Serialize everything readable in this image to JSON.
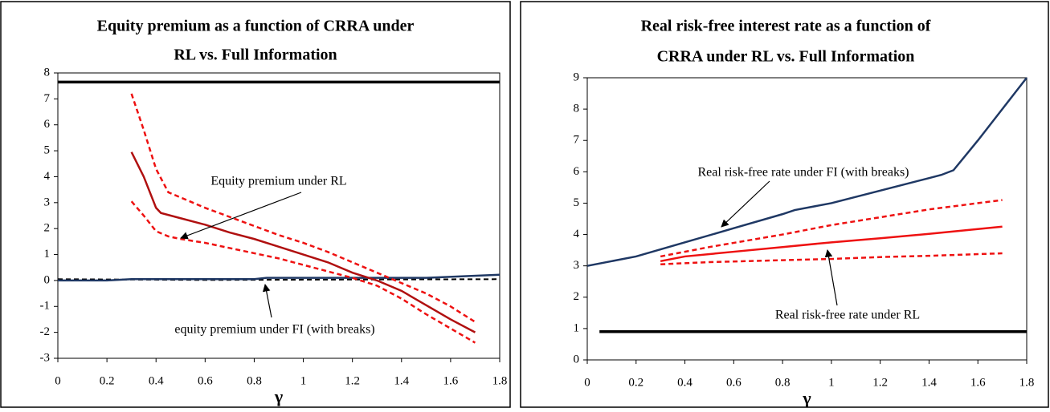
{
  "chart_data": [
    {
      "type": "line",
      "title": [
        "Equity premium as a function of CRRA under",
        "RL vs. Full Information"
      ],
      "xlabel": "γ",
      "xlim": [
        0,
        1.8
      ],
      "xticks": [
        0,
        0.2,
        0.4,
        0.6,
        0.8,
        1,
        1.2,
        1.4,
        1.6,
        1.8
      ],
      "ylim": [
        -3,
        8
      ],
      "yticks": [
        -3,
        -2,
        -1,
        0,
        1,
        2,
        3,
        4,
        5,
        6,
        7,
        8
      ],
      "annotations": [
        "Equity premium under RL",
        "equity premium under FI (with breaks)"
      ],
      "series": [
        {
          "color": "#000000",
          "style": "solid",
          "width": 3.5,
          "x": [
            0,
            1.8
          ],
          "values": [
            7.65,
            7.65
          ]
        },
        {
          "color": "#000000",
          "style": "dashed",
          "width": 2,
          "x": [
            0,
            0.6,
            1.8
          ],
          "values": [
            0.05,
            0.02,
            0.05
          ]
        },
        {
          "color": "#1f3864",
          "style": "solid",
          "width": 2.5,
          "x": [
            0,
            0.2,
            0.3,
            0.8,
            0.85,
            1.5,
            1.8
          ],
          "values": [
            0,
            0,
            0.05,
            0.05,
            0.1,
            0.1,
            0.22
          ]
        },
        {
          "color": "#b01010",
          "style": "solid",
          "width": 2.5,
          "x": [
            0.3,
            0.35,
            0.4,
            0.42,
            0.5,
            0.6,
            0.7,
            0.8,
            0.9,
            1.0,
            1.1,
            1.2,
            1.3,
            1.4,
            1.5,
            1.6,
            1.7
          ],
          "values": [
            4.95,
            4.0,
            2.8,
            2.6,
            2.4,
            2.15,
            1.85,
            1.6,
            1.3,
            1.0,
            0.7,
            0.3,
            0.0,
            -0.4,
            -0.95,
            -1.5,
            -2.0
          ]
        },
        {
          "color": "#ee1111",
          "style": "dashed",
          "width": 2.5,
          "x": [
            0.3,
            0.35,
            0.4,
            0.45,
            0.5,
            0.6,
            0.7,
            0.8,
            0.9,
            1.0,
            1.1,
            1.2,
            1.3,
            1.4,
            1.5,
            1.6,
            1.7
          ],
          "values": [
            7.2,
            5.8,
            4.3,
            3.4,
            3.2,
            2.8,
            2.45,
            2.1,
            1.75,
            1.45,
            1.1,
            0.7,
            0.3,
            -0.1,
            -0.5,
            -1.0,
            -1.6
          ]
        },
        {
          "color": "#ee1111",
          "style": "dashed",
          "width": 2.5,
          "x": [
            0.3,
            0.35,
            0.4,
            0.45,
            0.5,
            0.6,
            0.7,
            0.8,
            0.9,
            1.0,
            1.1,
            1.2,
            1.3,
            1.4,
            1.5,
            1.6,
            1.7
          ],
          "values": [
            3.05,
            2.5,
            1.9,
            1.7,
            1.6,
            1.45,
            1.25,
            1.05,
            0.85,
            0.6,
            0.35,
            0.1,
            -0.2,
            -0.7,
            -1.3,
            -1.85,
            -2.4
          ]
        }
      ]
    },
    {
      "type": "line",
      "title": [
        "Real risk-free interest rate as a function of",
        "CRRA under RL vs. Full Information"
      ],
      "xlabel": "γ",
      "xlim": [
        0,
        1.8
      ],
      "xticks": [
        0,
        0.2,
        0.4,
        0.6,
        0.8,
        1,
        1.2,
        1.4,
        1.6,
        1.8
      ],
      "ylim": [
        0,
        9
      ],
      "yticks": [
        0,
        1,
        2,
        3,
        4,
        5,
        6,
        7,
        8,
        9
      ],
      "annotations": [
        "Real risk-free rate under FI (with breaks)",
        "Real risk-free rate under RL"
      ],
      "series": [
        {
          "color": "#000000",
          "style": "solid",
          "width": 3.5,
          "x": [
            0.05,
            1.8
          ],
          "values": [
            0.9,
            0.9
          ]
        },
        {
          "color": "#1f3864",
          "style": "solid",
          "width": 2.5,
          "x": [
            0,
            0.2,
            0.4,
            0.6,
            0.8,
            0.85,
            1.0,
            1.2,
            1.4,
            1.45,
            1.5,
            1.6,
            1.7,
            1.8
          ],
          "values": [
            3.0,
            3.3,
            3.75,
            4.2,
            4.65,
            4.78,
            5.0,
            5.4,
            5.8,
            5.9,
            6.05,
            7.0,
            8.0,
            9.0
          ]
        },
        {
          "color": "#ee1111",
          "style": "solid",
          "width": 2.5,
          "x": [
            0.3,
            0.4,
            0.6,
            0.8,
            1.0,
            1.2,
            1.4,
            1.7
          ],
          "values": [
            3.15,
            3.3,
            3.45,
            3.6,
            3.75,
            3.88,
            4.02,
            4.25
          ]
        },
        {
          "color": "#ee1111",
          "style": "dashed",
          "width": 2.5,
          "x": [
            0.3,
            0.5,
            0.8,
            1.0,
            1.2,
            1.4,
            1.7
          ],
          "values": [
            3.3,
            3.6,
            4.0,
            4.3,
            4.55,
            4.8,
            5.1
          ]
        },
        {
          "color": "#ee1111",
          "style": "dashed",
          "width": 2.5,
          "x": [
            0.3,
            0.5,
            0.8,
            1.0,
            1.2,
            1.4,
            1.7
          ],
          "values": [
            3.05,
            3.12,
            3.18,
            3.22,
            3.28,
            3.32,
            3.4
          ]
        }
      ]
    }
  ]
}
